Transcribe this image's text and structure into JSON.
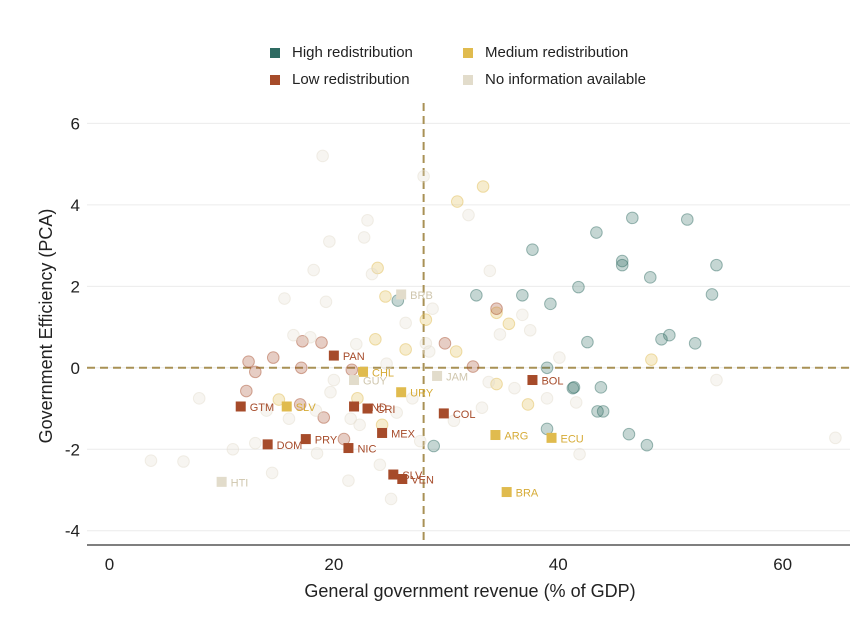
{
  "legend": [
    {
      "label": "High redistribution",
      "color": "#2e6b62"
    },
    {
      "label": "Medium redistribution",
      "color": "#e0bb4e"
    },
    {
      "label": "Low redistribution",
      "color": "#a64b2a"
    },
    {
      "label": "No information available",
      "color": "#e2dccb"
    }
  ],
  "chart_data": {
    "type": "scatter",
    "title": "",
    "xlabel": "General government revenue (% of GDP)",
    "ylabel": "Government Efficiency (PCA)",
    "xlim": [
      -2,
      66
    ],
    "ylim": [
      -4.35,
      6.5
    ],
    "xticks": [
      0,
      20,
      40,
      60
    ],
    "yticks": [
      -4,
      -2,
      0,
      2,
      4,
      6
    ],
    "reference_lines": {
      "x": 28,
      "y": 0
    },
    "grid": "horizontal",
    "legend_position": "top",
    "labeled_points": [
      {
        "label": "PAN",
        "x": 20.0,
        "y": 0.3,
        "group": "Low redistribution"
      },
      {
        "label": "CHL",
        "x": 22.6,
        "y": -0.1,
        "group": "Medium redistribution"
      },
      {
        "label": "GUY",
        "x": 21.8,
        "y": -0.3,
        "group": "No information available"
      },
      {
        "label": "BRB",
        "x": 26.0,
        "y": 1.8,
        "group": "No information available"
      },
      {
        "label": "JAM",
        "x": 29.2,
        "y": -0.2,
        "group": "No information available"
      },
      {
        "label": "URY",
        "x": 26.0,
        "y": -0.6,
        "group": "Medium redistribution"
      },
      {
        "label": "BOL",
        "x": 37.7,
        "y": -0.3,
        "group": "Low redistribution"
      },
      {
        "label": "GTM",
        "x": 11.7,
        "y": -0.95,
        "group": "Low redistribution"
      },
      {
        "label": "SLV",
        "x": 15.8,
        "y": -0.95,
        "group": "Medium redistribution"
      },
      {
        "label": "HND",
        "x": 21.8,
        "y": -0.95,
        "group": "Low redistribution"
      },
      {
        "label": "CRI",
        "x": 23.0,
        "y": -1.0,
        "group": "Low redistribution"
      },
      {
        "label": "COL",
        "x": 29.8,
        "y": -1.12,
        "group": "Low redistribution"
      },
      {
        "label": "MEX",
        "x": 24.3,
        "y": -1.6,
        "group": "Low redistribution"
      },
      {
        "label": "ARG",
        "x": 34.4,
        "y": -1.65,
        "group": "Medium redistribution"
      },
      {
        "label": "ECU",
        "x": 39.4,
        "y": -1.72,
        "group": "Medium redistribution"
      },
      {
        "label": "DOM",
        "x": 14.1,
        "y": -1.88,
        "group": "Low redistribution"
      },
      {
        "label": "PRY",
        "x": 17.5,
        "y": -1.75,
        "group": "Low redistribution"
      },
      {
        "label": "NIC",
        "x": 21.3,
        "y": -1.97,
        "group": "Low redistribution"
      },
      {
        "label": "SLV",
        "x": 25.3,
        "y": -2.62,
        "group": "Low redistribution"
      },
      {
        "label": "VEN",
        "x": 26.1,
        "y": -2.73,
        "group": "Low redistribution"
      },
      {
        "label": "BRA",
        "x": 35.4,
        "y": -3.05,
        "group": "Medium redistribution"
      },
      {
        "label": "HTI",
        "x": 10.0,
        "y": -2.8,
        "group": "No information available"
      }
    ],
    "background_points": [
      {
        "x": 25.7,
        "y": 1.65,
        "group": "High redistribution"
      },
      {
        "x": 32.7,
        "y": 1.78,
        "group": "High redistribution"
      },
      {
        "x": 36.8,
        "y": 1.78,
        "group": "High redistribution"
      },
      {
        "x": 37.7,
        "y": 2.9,
        "group": "High redistribution"
      },
      {
        "x": 39.3,
        "y": 1.57,
        "group": "High redistribution"
      },
      {
        "x": 39.0,
        "y": 0.0,
        "group": "High redistribution"
      },
      {
        "x": 41.8,
        "y": 1.98,
        "group": "High redistribution"
      },
      {
        "x": 42.6,
        "y": 0.63,
        "group": "High redistribution"
      },
      {
        "x": 43.4,
        "y": 3.32,
        "group": "High redistribution"
      },
      {
        "x": 45.7,
        "y": 2.62,
        "group": "High redistribution"
      },
      {
        "x": 45.7,
        "y": 2.52,
        "group": "High redistribution"
      },
      {
        "x": 46.6,
        "y": 3.68,
        "group": "High redistribution"
      },
      {
        "x": 48.2,
        "y": 2.22,
        "group": "High redistribution"
      },
      {
        "x": 49.2,
        "y": 0.7,
        "group": "High redistribution"
      },
      {
        "x": 49.9,
        "y": 0.8,
        "group": "High redistribution"
      },
      {
        "x": 51.5,
        "y": 3.64,
        "group": "High redistribution"
      },
      {
        "x": 52.2,
        "y": 0.6,
        "group": "High redistribution"
      },
      {
        "x": 53.7,
        "y": 1.8,
        "group": "High redistribution"
      },
      {
        "x": 54.1,
        "y": 2.52,
        "group": "High redistribution"
      },
      {
        "x": 41.4,
        "y": -0.48,
        "group": "High redistribution"
      },
      {
        "x": 43.8,
        "y": -0.48,
        "group": "High redistribution"
      },
      {
        "x": 43.5,
        "y": -1.07,
        "group": "High redistribution"
      },
      {
        "x": 44.0,
        "y": -1.07,
        "group": "High redistribution"
      },
      {
        "x": 39.0,
        "y": -1.5,
        "group": "High redistribution"
      },
      {
        "x": 46.3,
        "y": -1.63,
        "group": "High redistribution"
      },
      {
        "x": 47.9,
        "y": -1.9,
        "group": "High redistribution"
      },
      {
        "x": 28.9,
        "y": -1.92,
        "group": "High redistribution"
      },
      {
        "x": 41.3,
        "y": -0.5,
        "group": "High redistribution"
      },
      {
        "x": 33.3,
        "y": 4.45,
        "group": "Medium redistribution"
      },
      {
        "x": 31.0,
        "y": 4.08,
        "group": "Medium redistribution"
      },
      {
        "x": 23.9,
        "y": 2.45,
        "group": "Medium redistribution"
      },
      {
        "x": 24.6,
        "y": 1.75,
        "group": "Medium redistribution"
      },
      {
        "x": 34.5,
        "y": 1.35,
        "group": "Medium redistribution"
      },
      {
        "x": 35.6,
        "y": 1.08,
        "group": "Medium redistribution"
      },
      {
        "x": 23.7,
        "y": 0.7,
        "group": "Medium redistribution"
      },
      {
        "x": 26.4,
        "y": 0.45,
        "group": "Medium redistribution"
      },
      {
        "x": 28.2,
        "y": 1.18,
        "group": "Medium redistribution"
      },
      {
        "x": 30.9,
        "y": 0.4,
        "group": "Medium redistribution"
      },
      {
        "x": 48.3,
        "y": 0.2,
        "group": "Medium redistribution"
      },
      {
        "x": 34.5,
        "y": -0.4,
        "group": "Medium redistribution"
      },
      {
        "x": 37.3,
        "y": -0.9,
        "group": "Medium redistribution"
      },
      {
        "x": 15.1,
        "y": -0.78,
        "group": "Medium redistribution"
      },
      {
        "x": 22.1,
        "y": -0.75,
        "group": "Medium redistribution"
      },
      {
        "x": 24.3,
        "y": -1.4,
        "group": "Medium redistribution"
      },
      {
        "x": 12.4,
        "y": 0.15,
        "group": "Low redistribution"
      },
      {
        "x": 14.6,
        "y": 0.25,
        "group": "Low redistribution"
      },
      {
        "x": 13.0,
        "y": -0.1,
        "group": "Low redistribution"
      },
      {
        "x": 17.2,
        "y": 0.65,
        "group": "Low redistribution"
      },
      {
        "x": 18.9,
        "y": 0.62,
        "group": "Low redistribution"
      },
      {
        "x": 17.1,
        "y": 0.0,
        "group": "Low redistribution"
      },
      {
        "x": 12.2,
        "y": -0.57,
        "group": "Low redistribution"
      },
      {
        "x": 17.0,
        "y": -0.9,
        "group": "Low redistribution"
      },
      {
        "x": 19.1,
        "y": -1.22,
        "group": "Low redistribution"
      },
      {
        "x": 20.9,
        "y": -1.75,
        "group": "Low redistribution"
      },
      {
        "x": 29.9,
        "y": 0.6,
        "group": "Low redistribution"
      },
      {
        "x": 32.4,
        "y": 0.03,
        "group": "Low redistribution"
      },
      {
        "x": 34.5,
        "y": 1.45,
        "group": "Low redistribution"
      },
      {
        "x": 21.6,
        "y": -0.05,
        "group": "Low redistribution"
      },
      {
        "x": 19.0,
        "y": 5.2,
        "group": "No information available"
      },
      {
        "x": 28.0,
        "y": 4.7,
        "group": "No information available"
      },
      {
        "x": 23.0,
        "y": 3.62,
        "group": "No information available"
      },
      {
        "x": 22.7,
        "y": 3.2,
        "group": "No information available"
      },
      {
        "x": 19.6,
        "y": 3.1,
        "group": "No information available"
      },
      {
        "x": 32.0,
        "y": 3.75,
        "group": "No information available"
      },
      {
        "x": 18.2,
        "y": 2.4,
        "group": "No information available"
      },
      {
        "x": 23.4,
        "y": 2.3,
        "group": "No information available"
      },
      {
        "x": 33.9,
        "y": 2.38,
        "group": "No information available"
      },
      {
        "x": 15.6,
        "y": 1.7,
        "group": "No information available"
      },
      {
        "x": 19.3,
        "y": 1.62,
        "group": "No information available"
      },
      {
        "x": 28.8,
        "y": 1.45,
        "group": "No information available"
      },
      {
        "x": 36.8,
        "y": 1.3,
        "group": "No information available"
      },
      {
        "x": 37.5,
        "y": 0.92,
        "group": "No information available"
      },
      {
        "x": 16.4,
        "y": 0.8,
        "group": "No information available"
      },
      {
        "x": 17.9,
        "y": 0.75,
        "group": "No information available"
      },
      {
        "x": 22.0,
        "y": 0.58,
        "group": "No information available"
      },
      {
        "x": 26.4,
        "y": 1.1,
        "group": "No information available"
      },
      {
        "x": 28.2,
        "y": 0.6,
        "group": "No information available"
      },
      {
        "x": 28.5,
        "y": 0.4,
        "group": "No information available"
      },
      {
        "x": 34.8,
        "y": 0.82,
        "group": "No information available"
      },
      {
        "x": 40.1,
        "y": 0.25,
        "group": "No information available"
      },
      {
        "x": 20.0,
        "y": -0.3,
        "group": "No information available"
      },
      {
        "x": 24.7,
        "y": 0.1,
        "group": "No information available"
      },
      {
        "x": 33.8,
        "y": -0.35,
        "group": "No information available"
      },
      {
        "x": 8.0,
        "y": -0.75,
        "group": "No information available"
      },
      {
        "x": 14.0,
        "y": -1.05,
        "group": "No information available"
      },
      {
        "x": 16.0,
        "y": -1.25,
        "group": "No information available"
      },
      {
        "x": 18.4,
        "y": -1.05,
        "group": "No information available"
      },
      {
        "x": 19.7,
        "y": -0.6,
        "group": "No information available"
      },
      {
        "x": 21.5,
        "y": -1.25,
        "group": "No information available"
      },
      {
        "x": 22.3,
        "y": -1.4,
        "group": "No information available"
      },
      {
        "x": 25.6,
        "y": -1.1,
        "group": "No information available"
      },
      {
        "x": 27.0,
        "y": -0.75,
        "group": "No information available"
      },
      {
        "x": 30.7,
        "y": -1.3,
        "group": "No information available"
      },
      {
        "x": 33.2,
        "y": -0.98,
        "group": "No information available"
      },
      {
        "x": 39.0,
        "y": -0.75,
        "group": "No information available"
      },
      {
        "x": 41.6,
        "y": -0.85,
        "group": "No information available"
      },
      {
        "x": 41.9,
        "y": -2.12,
        "group": "No information available"
      },
      {
        "x": 54.1,
        "y": -0.3,
        "group": "No information available"
      },
      {
        "x": 64.7,
        "y": -1.72,
        "group": "No information available"
      },
      {
        "x": 3.7,
        "y": -2.28,
        "group": "No information available"
      },
      {
        "x": 6.6,
        "y": -2.3,
        "group": "No information available"
      },
      {
        "x": 11.0,
        "y": -2.0,
        "group": "No information available"
      },
      {
        "x": 13.0,
        "y": -1.85,
        "group": "No information available"
      },
      {
        "x": 14.5,
        "y": -2.58,
        "group": "No information available"
      },
      {
        "x": 18.5,
        "y": -2.1,
        "group": "No information available"
      },
      {
        "x": 21.3,
        "y": -2.77,
        "group": "No information available"
      },
      {
        "x": 24.1,
        "y": -2.38,
        "group": "No information available"
      },
      {
        "x": 25.1,
        "y": -3.22,
        "group": "No information available"
      },
      {
        "x": 27.7,
        "y": -1.8,
        "group": "No information available"
      },
      {
        "x": 36.1,
        "y": -0.5,
        "group": "No information available"
      }
    ]
  }
}
